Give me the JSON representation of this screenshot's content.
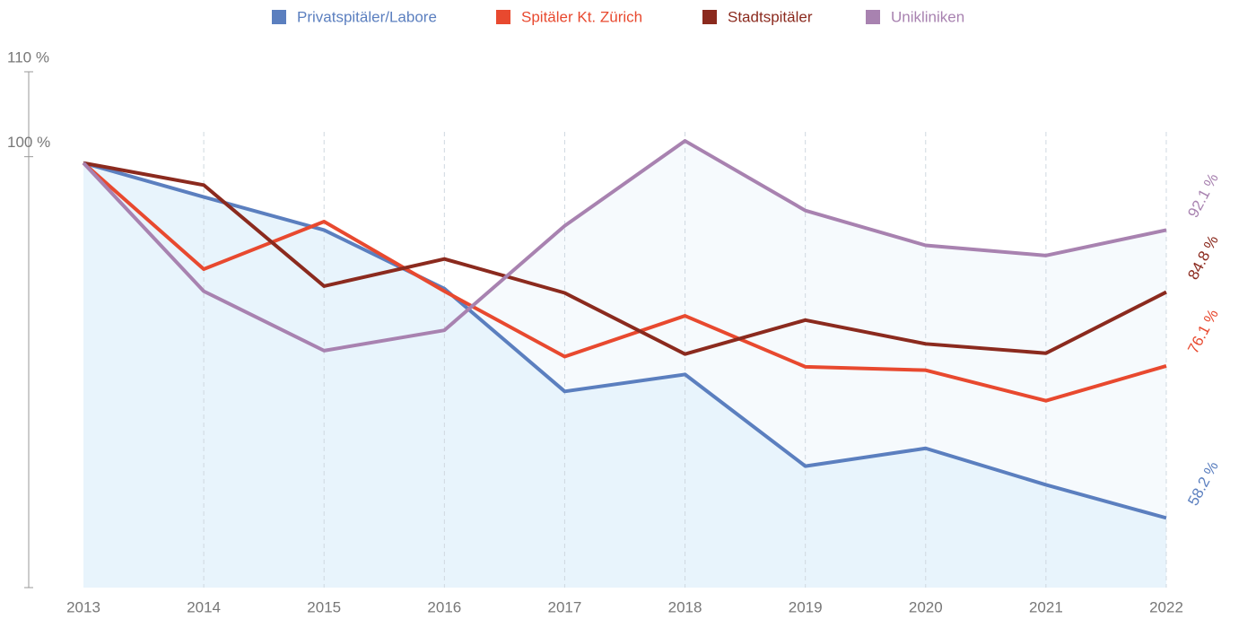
{
  "chart_data": {
    "type": "line",
    "categories": [
      "2013",
      "2014",
      "2015",
      "2016",
      "2017",
      "2018",
      "2019",
      "2020",
      "2021",
      "2022"
    ],
    "ylim": [
      50,
      110
    ],
    "yticks": [
      {
        "value": 100,
        "label": "100 %"
      },
      {
        "value": 110,
        "label": "110 %"
      }
    ],
    "grid": true,
    "legend": "top",
    "series": [
      {
        "name": "Privatspitäler/Labore",
        "color": "#5b7fbf",
        "area_color": "#e8f4fc",
        "values": [
          100,
          96.0,
          92.1,
          85.2,
          73.1,
          75.1,
          64.3,
          66.4,
          62.1,
          58.2
        ],
        "value_labels": [
          null,
          null,
          null,
          null,
          null,
          null,
          null,
          null,
          null,
          "58.2 %"
        ]
      },
      {
        "name": "Spitäler Kt. Zürich",
        "color": "#e8492f",
        "values": [
          100,
          87.5,
          93.1,
          84.9,
          77.2,
          82.0,
          76.0,
          75.6,
          72.0,
          76.1
        ],
        "value_labels": [
          null,
          null,
          null,
          null,
          null,
          null,
          null,
          null,
          null,
          "76.1 %"
        ]
      },
      {
        "name": "Stadtspitäler",
        "color": "#8b2a1e",
        "values": [
          100,
          97.4,
          85.5,
          88.7,
          84.7,
          77.5,
          81.5,
          78.7,
          77.6,
          84.8
        ],
        "value_labels": [
          null,
          null,
          null,
          null,
          null,
          null,
          null,
          null,
          null,
          "84.8 %"
        ]
      },
      {
        "name": "Unikliniken",
        "color": "#a882b0",
        "area_color": "#f6fafd",
        "values": [
          100,
          84.9,
          77.9,
          80.3,
          92.6,
          102.6,
          94.4,
          90.3,
          89.1,
          92.1
        ],
        "value_labels": [
          null,
          null,
          null,
          null,
          null,
          null,
          null,
          null,
          null,
          "92.1 %"
        ]
      }
    ]
  }
}
